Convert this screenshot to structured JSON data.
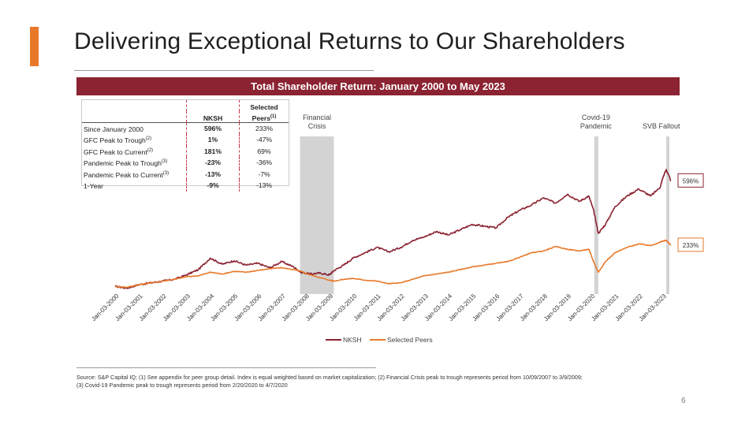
{
  "slide": {
    "title": "Delivering Exceptional Returns to Our Shareholders",
    "banner": "Total Shareholder Return: January 2000 to May 2023",
    "footnote_line1": "Source: S&P Capital IQ; (1) See appendix for peer group detail. Index is equal weighted based on market capitalization; (2) Financial Crisis peak to trough represents period from 10/09/2007 to 3/9/2009;",
    "footnote_line2": "(3) Covid-19 Pandemic peak to trough represents period from 2/20/2020 to 4/7/2020",
    "page_number": "6"
  },
  "table": {
    "col_nksh": "NKSH",
    "col_peers_line1": "Selected",
    "col_peers_line2": "Peers",
    "col_peers_sup": "(1)",
    "rows": [
      {
        "label": "Since January 2000",
        "sup": "",
        "nksh": "596%",
        "peers": "233%"
      },
      {
        "label": "GFC Peak to Trough",
        "sup": "(2)",
        "nksh": "1%",
        "peers": "-47%"
      },
      {
        "label": "GFC Peak to Current",
        "sup": "(2)",
        "nksh": "181%",
        "peers": "69%"
      },
      {
        "label": "Pandemic Peak to Trough",
        "sup": "(3)",
        "nksh": "-23%",
        "peers": "-36%"
      },
      {
        "label": "Pandemic Peak to Current",
        "sup": "(3)",
        "nksh": "-13%",
        "peers": "-7%"
      },
      {
        "label": "1-Year",
        "sup": "",
        "nksh": "-9%",
        "peers": "-13%"
      }
    ]
  },
  "chart_data": {
    "type": "line",
    "title": "Total Shareholder Return: January 2000 to May 2023",
    "x_start": 2000.0,
    "x_end": 2023.35,
    "ylim": [
      -30,
      780
    ],
    "tick_labels": [
      "Jan-03-2000",
      "Jan-03-2001",
      "Jan-03-2002",
      "Jan-03-2003",
      "Jan-03-2004",
      "Jan-03-2005",
      "Jan-03-2006",
      "Jan-03-2007",
      "Jan-03-2008",
      "Jan-03-2009",
      "Jan-03-2010",
      "Jan-03-2011",
      "Jan-03-2012",
      "Jan-03-2013",
      "Jan-03-2014",
      "Jan-03-2015",
      "Jan-03-2016",
      "Jan-03-2017",
      "Jan-03-2018",
      "Jan-03-2019",
      "Jan-03-2020",
      "Jan-03-2021",
      "Jan-03-2022",
      "Jan-03-2023"
    ],
    "series": [
      {
        "name": "NKSH",
        "color": "#8b2332",
        "x": [
          2000.0,
          2000.5,
          2001.0,
          2001.5,
          2002.0,
          2002.5,
          2003.0,
          2003.5,
          2004.0,
          2004.5,
          2005.0,
          2005.5,
          2006.0,
          2006.5,
          2007.0,
          2007.5,
          2007.8,
          2008.2,
          2008.6,
          2009.0,
          2009.2,
          2009.6,
          2010.0,
          2010.5,
          2011.0,
          2011.5,
          2012.0,
          2012.5,
          2013.0,
          2013.5,
          2014.0,
          2014.5,
          2015.0,
          2015.5,
          2016.0,
          2016.5,
          2017.0,
          2017.5,
          2018.0,
          2018.5,
          2019.0,
          2019.5,
          2019.9,
          2020.1,
          2020.3,
          2020.6,
          2021.0,
          2021.5,
          2022.0,
          2022.5,
          2022.9,
          2023.0,
          2023.15,
          2023.35
        ],
        "values": [
          0,
          -10,
          10,
          20,
          30,
          40,
          65,
          95,
          160,
          125,
          145,
          120,
          130,
          105,
          140,
          110,
          80,
          70,
          75,
          65,
          90,
          120,
          160,
          190,
          220,
          195,
          220,
          260,
          280,
          310,
          290,
          320,
          350,
          340,
          330,
          390,
          430,
          460,
          500,
          470,
          520,
          480,
          510,
          430,
          300,
          350,
          450,
          510,
          550,
          510,
          560,
          610,
          660,
          596
        ]
      },
      {
        "name": "Selected Peers",
        "color": "#e8792a",
        "x": [
          2000.0,
          2000.5,
          2001.0,
          2001.5,
          2002.0,
          2002.5,
          2003.0,
          2003.5,
          2004.0,
          2004.5,
          2005.0,
          2005.5,
          2006.0,
          2006.5,
          2007.0,
          2007.5,
          2007.8,
          2008.2,
          2008.6,
          2009.0,
          2009.2,
          2009.6,
          2010.0,
          2010.5,
          2011.0,
          2011.5,
          2012.0,
          2012.5,
          2013.0,
          2013.5,
          2014.0,
          2014.5,
          2015.0,
          2015.5,
          2016.0,
          2016.5,
          2017.0,
          2017.5,
          2018.0,
          2018.5,
          2019.0,
          2019.5,
          2019.9,
          2020.1,
          2020.3,
          2020.6,
          2021.0,
          2021.5,
          2022.0,
          2022.5,
          2022.9,
          2023.0,
          2023.15,
          2023.35
        ],
        "values": [
          0,
          -5,
          10,
          20,
          30,
          40,
          55,
          60,
          80,
          70,
          85,
          80,
          90,
          100,
          105,
          95,
          85,
          65,
          50,
          35,
          30,
          40,
          45,
          35,
          30,
          15,
          20,
          40,
          60,
          70,
          80,
          95,
          110,
          120,
          130,
          140,
          165,
          190,
          200,
          225,
          210,
          200,
          210,
          140,
          80,
          140,
          190,
          220,
          240,
          230,
          250,
          255,
          260,
          233
        ]
      }
    ],
    "end_labels": {
      "NKSH": "596%",
      "Selected Peers": "233%"
    },
    "shaded_periods": [
      {
        "label_line1": "Financial",
        "label_line2": "Crisis",
        "start": 2007.77,
        "end": 2009.19
      },
      {
        "label_line1": "Covid-19",
        "label_line2": "Pandemic",
        "start": 2020.13,
        "end": 2020.27
      }
    ],
    "events": [
      {
        "label": "SVB Fallout",
        "start": 2023.15,
        "end": 2023.27
      }
    ],
    "legend": {
      "position": "bottom-center",
      "items": [
        "NKSH",
        "Selected Peers"
      ]
    },
    "grid": false
  }
}
